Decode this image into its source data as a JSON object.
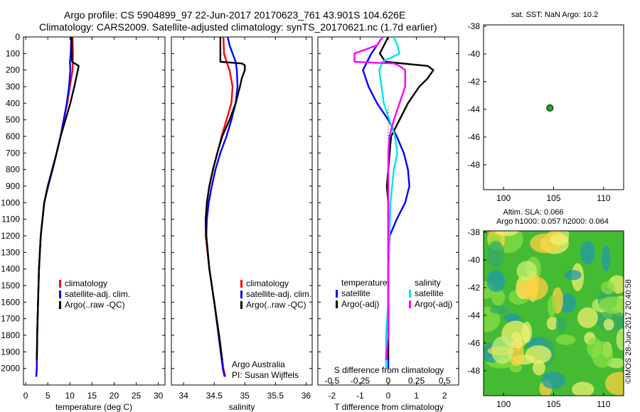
{
  "header": {
    "line1": "Argo profile: CS 5904899_97 22-Jun-2017 20170623_761 43.901S 104.626E",
    "line2": "Climatology: CARS2009. Satellite-adjusted climatology: synTS_20170621.nc (1.7d earlier)"
  },
  "credits": {
    "line1": "Argo Australia",
    "line2": "PI: Susan Wijffels"
  },
  "stamp": "©IMOS 28-Jun-2017 20:40:58",
  "colors": {
    "red": "#ff0000",
    "blue": "#0000ff",
    "black": "#000000",
    "cyan": "#00e5ee",
    "magenta": "#ff00ff",
    "float": "#22aa22"
  },
  "legends": {
    "profile": [
      "climatology",
      "satellite-adj. clim.",
      "Argo(..raw -QC)"
    ],
    "diff_headers": [
      "temperature",
      "salinity"
    ],
    "diff_items": [
      "satellite",
      "Argo(-adj)",
      "satellite",
      "Argo(-adj)"
    ]
  },
  "map_texts": {
    "sst_title": "sat. SST: NaN Argo: 10.2",
    "sla_line1": "Altim. SLA: 0.066",
    "sla_line2": "Argo h1000: 0.057 h2000: 0.064"
  },
  "chart_data": [
    {
      "type": "line",
      "xlabel": "temperature (deg C)",
      "xlim": [
        -0.5,
        31.5
      ],
      "xticks": [
        "0",
        "5",
        "10",
        "15",
        "20",
        "25",
        "30"
      ],
      "ylim": [
        2100,
        0
      ],
      "yticks": [
        "0",
        "100",
        "200",
        "300",
        "400",
        "500",
        "600",
        "700",
        "800",
        "900",
        "1000",
        "1100",
        "1200",
        "1300",
        "1400",
        "1500",
        "1600",
        "1700",
        "1800",
        "1900",
        "2000"
      ],
      "series": [
        {
          "name": "climatology",
          "color": "#ff0000",
          "depth": [
            0,
            100,
            200,
            300,
            400,
            500,
            600,
            700,
            800,
            900,
            1000,
            1200,
            1400,
            1600,
            1800,
            2000,
            2050
          ],
          "values": [
            10.6,
            10.7,
            10.6,
            10.0,
            9.4,
            8.6,
            7.9,
            7.0,
            6.1,
            5.0,
            4.2,
            3.4,
            3.0,
            2.8,
            2.6,
            2.5,
            2.4
          ]
        },
        {
          "name": "satellite-adj. clim.",
          "color": "#0000ff",
          "depth": [
            0,
            100,
            150,
            200,
            300,
            400,
            500,
            600,
            700,
            800,
            900,
            1000,
            1200,
            1400,
            1600,
            1800,
            2000,
            2050
          ],
          "values": [
            10.3,
            10.2,
            10.0,
            10.1,
            9.8,
            9.3,
            8.6,
            7.9,
            7.0,
            6.1,
            5.1,
            4.2,
            3.4,
            3.0,
            2.8,
            2.6,
            2.5,
            2.4
          ]
        },
        {
          "name": "Argo(..raw -QC)",
          "color": "#000000",
          "depth": [
            0,
            100,
            150,
            175,
            200,
            250,
            300,
            400,
            500,
            600,
            700,
            800,
            900,
            1000,
            1100,
            1200,
            1400,
            1600,
            1800,
            1950
          ],
          "values": [
            10.4,
            10.4,
            10.5,
            12.0,
            11.8,
            11.4,
            11.0,
            10.1,
            9.0,
            7.9,
            7.0,
            6.0,
            5.0,
            4.2,
            3.8,
            3.4,
            3.0,
            2.8,
            2.6,
            2.5
          ]
        }
      ]
    },
    {
      "type": "line",
      "xlabel": "salinity",
      "xlim": [
        33.8,
        36.1
      ],
      "xticks": [
        "34",
        "34.5",
        "35",
        "35.5",
        "36"
      ],
      "ylim": [
        2100,
        0
      ],
      "series": [
        {
          "name": "climatology",
          "color": "#ff0000",
          "depth": [
            0,
            100,
            150,
            200,
            300,
            400,
            500,
            600,
            700,
            800,
            900,
            1000,
            1100,
            1200,
            1400,
            1600,
            1800,
            2000,
            2050
          ],
          "values": [
            34.65,
            34.66,
            34.7,
            34.75,
            34.8,
            34.78,
            34.7,
            34.62,
            34.55,
            34.48,
            34.42,
            34.38,
            34.36,
            34.36,
            34.42,
            34.5,
            34.58,
            34.65,
            34.68
          ]
        },
        {
          "name": "satellite-adj. clim.",
          "color": "#0000ff",
          "depth": [
            0,
            50,
            100,
            150,
            200,
            300,
            400,
            500,
            600,
            700,
            800,
            900,
            1000,
            1100,
            1200,
            1400,
            1600,
            1800,
            2000,
            2050
          ],
          "values": [
            34.72,
            34.75,
            34.8,
            34.85,
            34.87,
            34.88,
            34.85,
            34.78,
            34.7,
            34.6,
            34.52,
            34.46,
            34.41,
            34.38,
            34.37,
            34.42,
            34.5,
            34.57,
            34.64,
            34.67
          ]
        },
        {
          "name": "Argo(..raw -QC)",
          "color": "#000000",
          "depth": [
            0,
            150,
            160,
            170,
            200,
            250,
            300,
            400,
            500,
            600,
            700,
            800,
            900,
            1000,
            1100,
            1200,
            1400,
            1600,
            1800,
            1950
          ],
          "values": [
            34.6,
            34.6,
            34.95,
            35.0,
            35.0,
            34.95,
            34.92,
            34.85,
            34.75,
            34.63,
            34.55,
            34.48,
            34.42,
            34.38,
            34.36,
            34.37,
            34.42,
            34.5,
            34.58,
            34.63
          ]
        }
      ]
    },
    {
      "type": "line",
      "xlabel": "T difference from climatology",
      "title_top": "S difference from climatology",
      "xlim": [
        -2.5,
        2.5
      ],
      "xticks": [
        "-2",
        "-1",
        "0",
        "1",
        "2"
      ],
      "sticks": [
        "-0.5",
        "-0.25",
        "0",
        "0.25",
        "0.5"
      ],
      "ylim": [
        2100,
        0
      ],
      "series": [
        {
          "name": "temperature satellite",
          "color": "#0000ff",
          "depth": [
            0,
            100,
            200,
            300,
            400,
            500,
            600,
            700,
            800,
            900,
            1000,
            1100,
            1200,
            1400,
            1600,
            1800,
            2000
          ],
          "values": [
            -0.2,
            -0.6,
            -0.9,
            -0.7,
            -0.4,
            0.0,
            0.3,
            0.55,
            0.7,
            0.75,
            0.6,
            0.3,
            0.05,
            0.0,
            0.0,
            0.0,
            0.0
          ]
        },
        {
          "name": "temperature Argo(-adj)",
          "color": "#000000",
          "depth": [
            0,
            100,
            150,
            175,
            200,
            250,
            300,
            400,
            500,
            600,
            700,
            800,
            900,
            1000,
            1200,
            1400,
            1600,
            1800,
            1950
          ],
          "values": [
            0.0,
            -0.3,
            -0.1,
            1.4,
            1.6,
            1.4,
            1.1,
            0.7,
            0.4,
            0.1,
            0.05,
            0.0,
            -0.05,
            0.0,
            0.0,
            0.0,
            0.0,
            0.0,
            0.0
          ]
        },
        {
          "name": "salinity satellite",
          "color": "#00e5ee",
          "depth": [
            0,
            50,
            100,
            150,
            200,
            400,
            600,
            700,
            800,
            1000,
            1200,
            1400,
            1600,
            1800,
            2000
          ],
          "values": [
            0.05,
            0.08,
            0.1,
            -0.05,
            -0.08,
            -0.04,
            0.06,
            0.08,
            0.05,
            0.02,
            0.01,
            0.0,
            0.0,
            -0.02,
            -0.02
          ]
        },
        {
          "name": "salinity Argo(-adj)",
          "color": "#ff00ff",
          "depth": [
            0,
            50,
            100,
            150,
            160,
            175,
            200,
            300,
            400,
            500,
            600,
            700,
            800,
            900,
            1000,
            1200,
            1400,
            1600,
            1800,
            1950
          ],
          "values": [
            -0.05,
            -0.1,
            -0.3,
            -0.3,
            0.05,
            0.1,
            0.15,
            0.15,
            0.1,
            0.05,
            0.01,
            0.0,
            0.0,
            0.0,
            0.0,
            0.0,
            0.0,
            0.0,
            0.0,
            -0.02
          ]
        }
      ]
    },
    {
      "type": "scatter",
      "title": "sat. SST: NaN Argo: 10.2",
      "xlim": [
        98,
        112
      ],
      "ylim": [
        -49.8,
        -37.9
      ],
      "xticks": [
        "100",
        "105",
        "110"
      ],
      "yticks": [
        "-38",
        "-40",
        "-42",
        "-44",
        "-46",
        "-48"
      ],
      "points": [
        {
          "lon": 104.626,
          "lat": -43.901
        }
      ]
    },
    {
      "type": "heatmap",
      "title": "Argo h1000: 0.057 h2000: 0.064",
      "xlim": [
        98,
        112
      ],
      "ylim": [
        -49.8,
        -37.9
      ],
      "xticks": [
        "100",
        "105",
        "110"
      ],
      "yticks": [
        "-38",
        "-40",
        "-42",
        "-44",
        "-46",
        "-48"
      ],
      "field_colors": [
        "#44bb33",
        "#88dd44",
        "#c8f070",
        "#eef070",
        "#ffd040",
        "#33aa66",
        "#2299aa"
      ]
    }
  ]
}
